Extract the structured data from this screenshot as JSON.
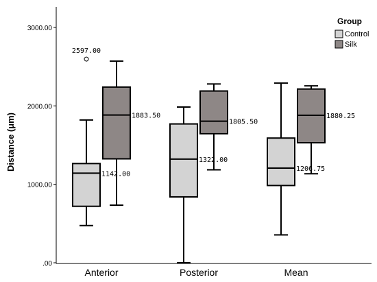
{
  "chart_data": {
    "type": "boxplot",
    "ylabel": "Distance (μm)",
    "ylim": [
      0,
      3000
    ],
    "yticks": [
      0,
      1000,
      2000,
      3000
    ],
    "ytick_labels": [
      ".00",
      "1000.00",
      "2000.00",
      "3000.00"
    ],
    "categories": [
      "Anterior",
      "Posterior",
      "Mean"
    ],
    "legend": {
      "title": "Group",
      "placement": "top-right",
      "entries": [
        "Control",
        "Silk"
      ]
    },
    "series": [
      {
        "name": "Control",
        "color": "#d3d3d3",
        "boxes": [
          {
            "min": 475,
            "q1": 720,
            "median": 1142.0,
            "q3": 1265,
            "max": 1820,
            "median_label": "1142.00",
            "outliers": [
              {
                "value": 2597.0,
                "label": "2597.00"
              }
            ]
          },
          {
            "min": 0,
            "q1": 840,
            "median": 1322.0,
            "q3": 1770,
            "max": 1985,
            "median_label": "1322.00",
            "outliers": []
          },
          {
            "min": 355,
            "q1": 985,
            "median": 1206.75,
            "q3": 1590,
            "max": 2290,
            "median_label": "1206.75",
            "outliers": []
          }
        ]
      },
      {
        "name": "Silk",
        "color": "#8e8786",
        "boxes": [
          {
            "min": 735,
            "q1": 1325,
            "median": 1883.5,
            "q3": 2240,
            "max": 2570,
            "median_label": "1883.50",
            "outliers": []
          },
          {
            "min": 1185,
            "q1": 1645,
            "median": 1805.5,
            "q3": 2190,
            "max": 2280,
            "median_label": "1805.50",
            "outliers": []
          },
          {
            "min": 1135,
            "q1": 1530,
            "median": 1880.25,
            "q3": 2215,
            "max": 2255,
            "median_label": "1880.25",
            "outliers": []
          }
        ]
      }
    ]
  }
}
